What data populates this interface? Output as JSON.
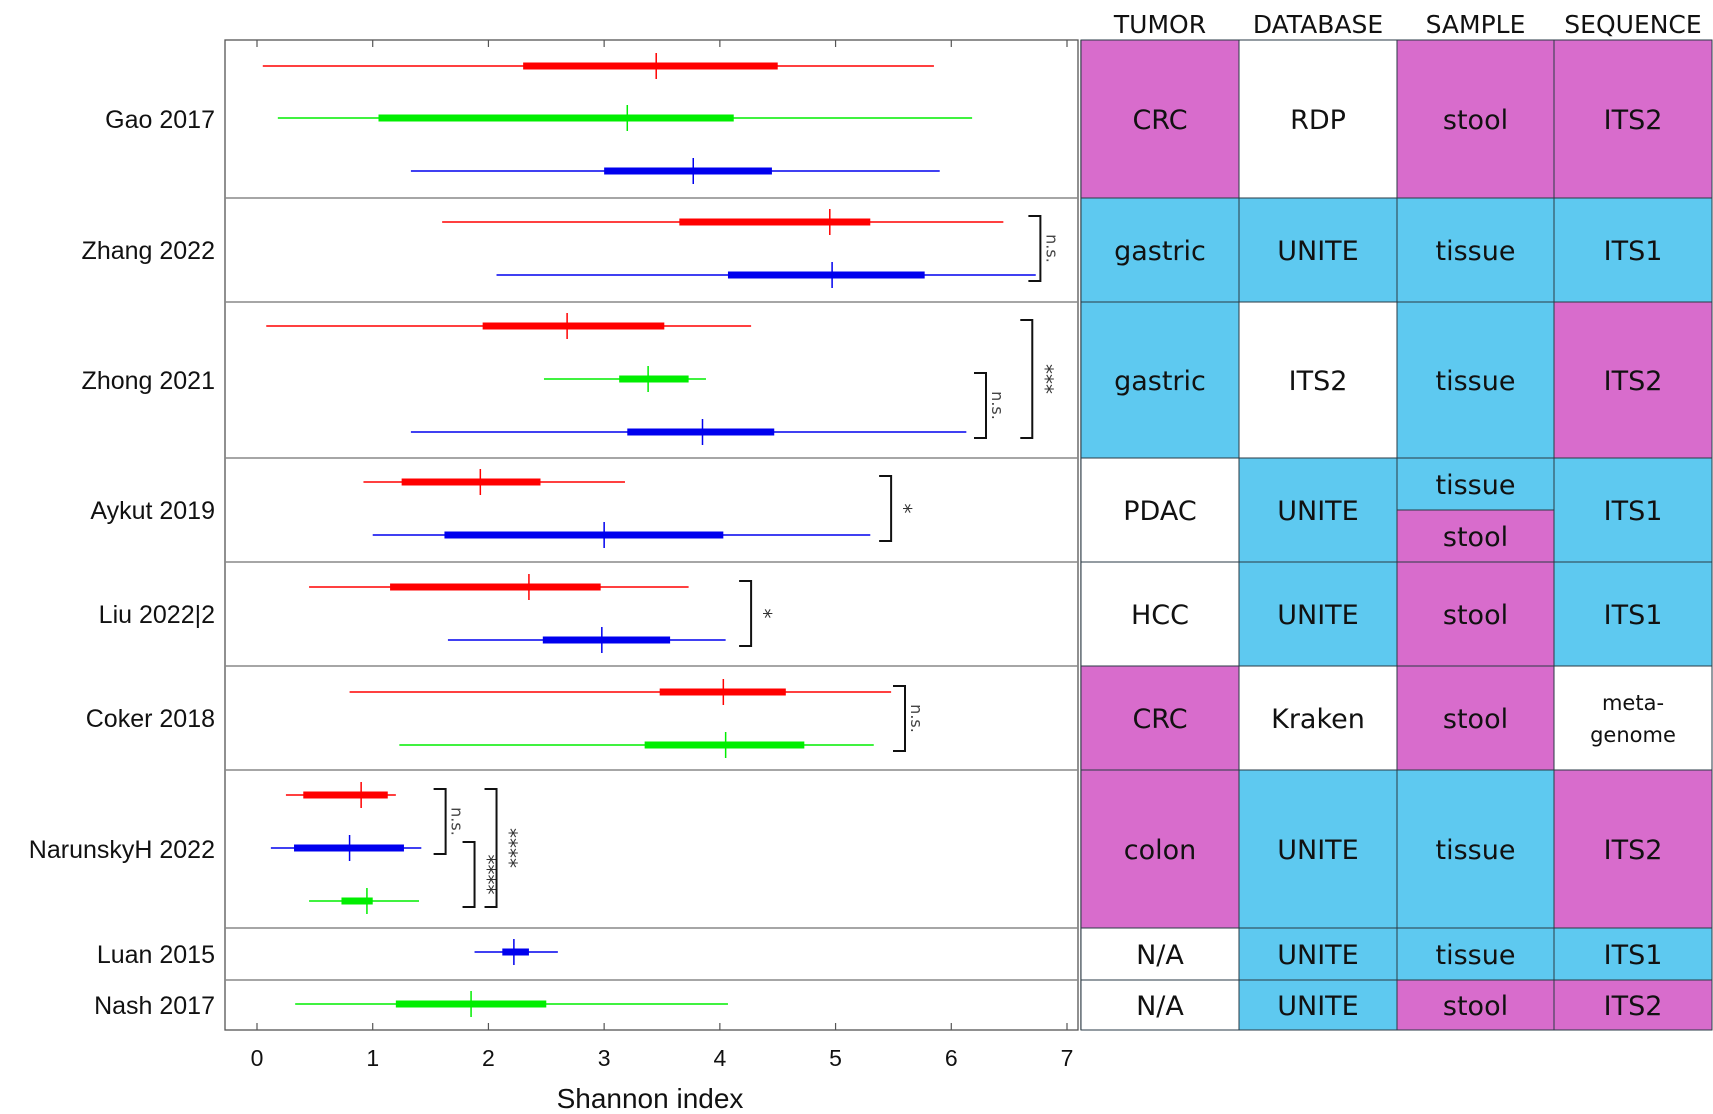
{
  "chart_data": {
    "type": "box",
    "title": "",
    "xlabel": "Shannon index",
    "ylabel": "",
    "xlim": [
      0,
      7
    ],
    "xticks": [
      "0",
      "1",
      "2",
      "3",
      "4",
      "5",
      "6",
      "7"
    ],
    "series_colors": [
      "#ff0000",
      "#00ee00",
      "#0000ee"
    ],
    "studies": [
      {
        "name": "Gao 2017",
        "boxes": [
          {
            "color": "#ff0000",
            "min": 0.05,
            "q1": 2.3,
            "median": 3.45,
            "q3": 4.5,
            "max": 5.85
          },
          {
            "color": "#00ee00",
            "min": 0.18,
            "q1": 1.05,
            "median": 3.2,
            "q3": 4.12,
            "max": 6.18
          },
          {
            "color": "#0000ee",
            "min": 1.33,
            "q1": 3.0,
            "median": 3.77,
            "q3": 4.45,
            "max": 5.9
          }
        ],
        "brackets": []
      },
      {
        "name": "Zhang 2022",
        "boxes": [
          {
            "color": "#ff0000",
            "min": 1.6,
            "q1": 3.65,
            "median": 4.95,
            "q3": 5.3,
            "max": 6.45
          },
          {
            "color": "#0000ee",
            "min": 2.07,
            "q1": 4.07,
            "median": 4.97,
            "q3": 5.77,
            "max": 6.73
          }
        ],
        "brackets": [
          {
            "from": 0,
            "to": 1,
            "x": 6.77,
            "label": "n.s."
          }
        ]
      },
      {
        "name": "Zhong 2021",
        "boxes": [
          {
            "color": "#ff0000",
            "min": 0.08,
            "q1": 1.95,
            "median": 2.68,
            "q3": 3.52,
            "max": 4.27
          },
          {
            "color": "#00ee00",
            "min": 2.48,
            "q1": 3.13,
            "median": 3.38,
            "q3": 3.73,
            "max": 3.88
          },
          {
            "color": "#0000ee",
            "min": 1.33,
            "q1": 3.2,
            "median": 3.85,
            "q3": 4.47,
            "max": 6.13
          }
        ],
        "brackets": [
          {
            "from": 1,
            "to": 2,
            "x": 6.3,
            "label": "n.s."
          },
          {
            "from": 0,
            "to": 2,
            "x": 6.7,
            "label": "***"
          }
        ]
      },
      {
        "name": "Aykut 2019",
        "boxes": [
          {
            "color": "#ff0000",
            "min": 0.92,
            "q1": 1.25,
            "median": 1.93,
            "q3": 2.45,
            "max": 3.18
          },
          {
            "color": "#0000ee",
            "min": 1.0,
            "q1": 1.62,
            "median": 3.0,
            "q3": 4.03,
            "max": 5.3
          }
        ],
        "brackets": [
          {
            "from": 0,
            "to": 1,
            "x": 5.48,
            "label": "*"
          }
        ]
      },
      {
        "name": "Liu 2022|2",
        "boxes": [
          {
            "color": "#ff0000",
            "min": 0.45,
            "q1": 1.15,
            "median": 2.35,
            "q3": 2.97,
            "max": 3.73
          },
          {
            "color": "#0000ee",
            "min": 1.65,
            "q1": 2.47,
            "median": 2.98,
            "q3": 3.57,
            "max": 4.05
          }
        ],
        "brackets": [
          {
            "from": 0,
            "to": 1,
            "x": 4.27,
            "label": "*"
          }
        ]
      },
      {
        "name": "Coker 2018",
        "boxes": [
          {
            "color": "#ff0000",
            "min": 0.8,
            "q1": 3.48,
            "median": 4.03,
            "q3": 4.57,
            "max": 5.48
          },
          {
            "color": "#00ee00",
            "min": 1.23,
            "q1": 3.35,
            "median": 4.05,
            "q3": 4.73,
            "max": 5.33
          }
        ],
        "brackets": [
          {
            "from": 0,
            "to": 1,
            "x": 5.6,
            "label": "n.s."
          }
        ]
      },
      {
        "name": "NarunskyH 2022",
        "boxes": [
          {
            "color": "#ff0000",
            "min": 0.25,
            "q1": 0.4,
            "median": 0.9,
            "q3": 1.13,
            "max": 1.2
          },
          {
            "color": "#0000ee",
            "min": 0.12,
            "q1": 0.32,
            "median": 0.8,
            "q3": 1.27,
            "max": 1.42
          },
          {
            "color": "#00ee00",
            "min": 0.45,
            "q1": 0.73,
            "median": 0.95,
            "q3": 1.0,
            "max": 1.4
          }
        ],
        "brackets": [
          {
            "from": 0,
            "to": 1,
            "x": 1.63,
            "label": "n.s."
          },
          {
            "from": 1,
            "to": 2,
            "x": 1.88,
            "label": "****"
          },
          {
            "from": 0,
            "to": 2,
            "x": 2.07,
            "label": "****"
          }
        ]
      },
      {
        "name": "Luan 2015",
        "boxes": [
          {
            "color": "#0000ee",
            "min": 1.88,
            "q1": 2.12,
            "median": 2.22,
            "q3": 2.35,
            "max": 2.6
          }
        ],
        "brackets": []
      },
      {
        "name": "Nash 2017",
        "boxes": [
          {
            "color": "#00ee00",
            "min": 0.33,
            "q1": 1.2,
            "median": 1.85,
            "q3": 2.5,
            "max": 4.07
          }
        ],
        "brackets": []
      }
    ]
  },
  "table": {
    "columns": [
      "TUMOR",
      "DATABASE",
      "SAMPLE",
      "SEQUENCE"
    ],
    "colors": {
      "magenta": "#d86ccc",
      "cyan": "#5ec9f0",
      "white": "#ffffff"
    },
    "rows": [
      {
        "study": "Gao 2017",
        "cells": [
          {
            "text": "CRC",
            "color": "magenta"
          },
          {
            "text": "RDP",
            "color": "white"
          },
          {
            "text": "stool",
            "color": "magenta"
          },
          {
            "text": "ITS2",
            "color": "magenta"
          }
        ]
      },
      {
        "study": "Zhang 2022",
        "cells": [
          {
            "text": "gastric",
            "color": "cyan"
          },
          {
            "text": "UNITE",
            "color": "cyan"
          },
          {
            "text": "tissue",
            "color": "cyan"
          },
          {
            "text": "ITS1",
            "color": "cyan"
          }
        ]
      },
      {
        "study": "Zhong 2021",
        "cells": [
          {
            "text": "gastric",
            "color": "cyan"
          },
          {
            "text": "ITS2",
            "color": "white"
          },
          {
            "text": "tissue",
            "color": "cyan"
          },
          {
            "text": "ITS2",
            "color": "magenta"
          }
        ]
      },
      {
        "study": "Aykut 2019",
        "cells": [
          {
            "text": "PDAC",
            "color": "white"
          },
          {
            "text": "UNITE",
            "color": "cyan"
          },
          {
            "split": [
              {
                "text": "tissue",
                "color": "cyan"
              },
              {
                "text": "stool",
                "color": "magenta"
              }
            ]
          },
          {
            "text": "ITS1",
            "color": "cyan"
          }
        ]
      },
      {
        "study": "Liu 2022|2",
        "cells": [
          {
            "text": "HCC",
            "color": "white"
          },
          {
            "text": "UNITE",
            "color": "cyan"
          },
          {
            "text": "stool",
            "color": "magenta"
          },
          {
            "text": "ITS1",
            "color": "cyan"
          }
        ]
      },
      {
        "study": "Coker 2018",
        "cells": [
          {
            "text": "CRC",
            "color": "magenta"
          },
          {
            "text": "Kraken",
            "color": "white"
          },
          {
            "text": "stool",
            "color": "magenta"
          },
          {
            "lines": [
              "meta-",
              "genome"
            ],
            "color": "white"
          }
        ]
      },
      {
        "study": "NarunskyH 2022",
        "cells": [
          {
            "text": "colon",
            "color": "magenta"
          },
          {
            "text": "UNITE",
            "color": "cyan"
          },
          {
            "text": "tissue",
            "color": "cyan"
          },
          {
            "text": "ITS2",
            "color": "magenta"
          }
        ]
      },
      {
        "study": "Luan 2015",
        "cells": [
          {
            "text": "N/A",
            "color": "white"
          },
          {
            "text": "UNITE",
            "color": "cyan"
          },
          {
            "text": "tissue",
            "color": "cyan"
          },
          {
            "text": "ITS1",
            "color": "cyan"
          }
        ]
      },
      {
        "study": "Nash 2017",
        "cells": [
          {
            "text": "N/A",
            "color": "white"
          },
          {
            "text": "UNITE",
            "color": "cyan"
          },
          {
            "text": "stool",
            "color": "magenta"
          },
          {
            "text": "ITS2",
            "color": "magenta"
          }
        ]
      }
    ]
  }
}
